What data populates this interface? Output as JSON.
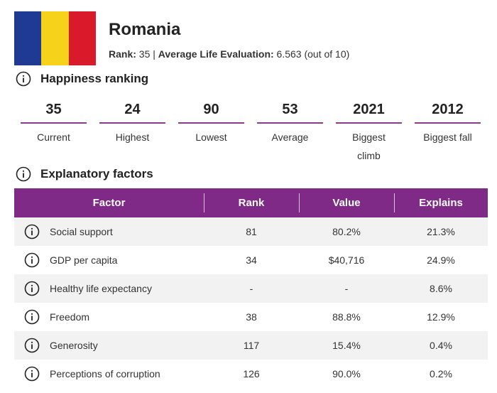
{
  "header": {
    "country": "Romania",
    "rank_label": "Rank:",
    "rank_value": "35",
    "separator": "|",
    "life_eval_label": "Average Life Evaluation:",
    "life_eval_value": "6.563 (out of 10)"
  },
  "flag": {
    "colors": [
      "#1f3a93",
      "#f6d21b",
      "#d91a2a"
    ]
  },
  "ranking": {
    "title": "Happiness ranking",
    "icon": "info-icon",
    "stats": [
      {
        "value": "35",
        "label": "Current"
      },
      {
        "value": "24",
        "label": "Highest"
      },
      {
        "value": "90",
        "label": "Lowest"
      },
      {
        "value": "53",
        "label": "Average"
      },
      {
        "value": "2021",
        "label": "Biggest climb"
      },
      {
        "value": "2012",
        "label": "Biggest fall"
      }
    ]
  },
  "factors": {
    "title": "Explanatory factors",
    "columns": [
      "Factor",
      "Rank",
      "Value",
      "Explains"
    ],
    "rows": [
      {
        "factor": "Social support",
        "rank": "81",
        "value": "80.2%",
        "explains": "21.3%"
      },
      {
        "factor": "GDP per capita",
        "rank": "34",
        "value": "$40,716",
        "explains": "24.9%"
      },
      {
        "factor": "Healthy life expectancy",
        "rank": "-",
        "value": "-",
        "explains": "8.6%"
      },
      {
        "factor": "Freedom",
        "rank": "38",
        "value": "88.8%",
        "explains": "12.9%"
      },
      {
        "factor": "Generosity",
        "rank": "117",
        "value": "15.4%",
        "explains": "0.4%"
      },
      {
        "factor": "Perceptions of corruption",
        "rank": "126",
        "value": "90.0%",
        "explains": "0.2%"
      }
    ]
  },
  "colors": {
    "accent": "#7e2a86",
    "bar": "#8b3a8f",
    "row_alt": "#f2f2f2"
  }
}
